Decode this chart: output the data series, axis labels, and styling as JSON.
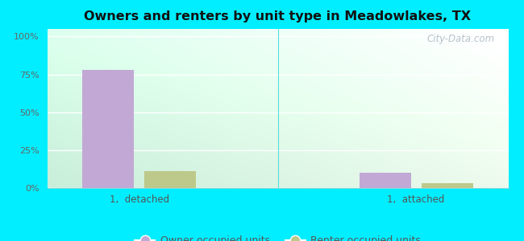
{
  "title": "Owners and renters by unit type in Meadowlakes, TX",
  "categories": [
    "1,  detached",
    "1,  attached"
  ],
  "owner_values": [
    78,
    10
  ],
  "renter_values": [
    11,
    3
  ],
  "owner_color": "#c2a8d4",
  "renter_color": "#bdc98a",
  "yticks": [
    0,
    25,
    50,
    75,
    100
  ],
  "ytick_labels": [
    "0%",
    "25%",
    "50%",
    "75%",
    "100%"
  ],
  "ylim": [
    0,
    105
  ],
  "legend_owner": "Owner occupied units",
  "legend_renter": "Renter occupied units",
  "watermark": "City-Data.com",
  "bar_width": 0.28,
  "group_positions": [
    0.75,
    2.25
  ],
  "xlim": [
    0.25,
    2.75
  ],
  "fig_bg": "#00eeff",
  "axis_bg_left": "#c8eeda",
  "axis_bg_right": "#edfaed"
}
